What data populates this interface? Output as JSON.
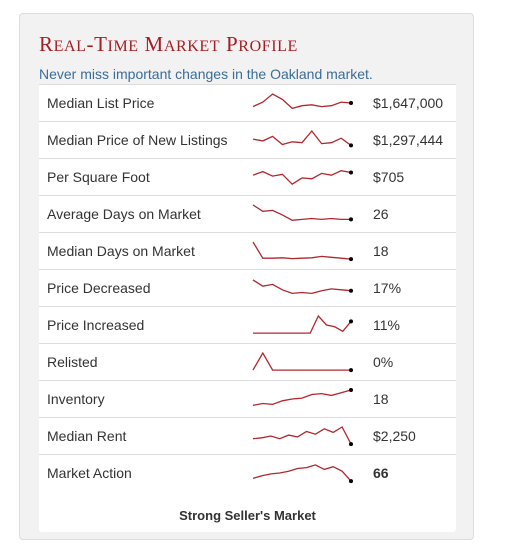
{
  "title": {
    "R": "R",
    "eal": "EAL",
    "dash": "-",
    "T": "T",
    "ime": "IME",
    "M1": "M",
    "arket": "ARKET",
    "P": "P",
    "rofile": "ROFILE"
  },
  "subtitle": "Never miss important changes in the Oakland market.",
  "colors": {
    "title": "#a61d23",
    "subtitle": "#3b6c9a",
    "sparkline": "#b0282e",
    "endpoint": "#000000"
  },
  "rows": [
    {
      "label": "Median List Price",
      "value": "$1,647,000",
      "trend": [
        0.3,
        0.55,
        1.0,
        0.7,
        0.2,
        0.35,
        0.4,
        0.3,
        0.35,
        0.55,
        0.5
      ]
    },
    {
      "label": "Median Price of New Listings",
      "value": "$1,297,444",
      "trend": [
        0.55,
        0.45,
        0.7,
        0.25,
        0.4,
        0.35,
        1.0,
        0.3,
        0.35,
        0.6,
        0.2
      ]
    },
    {
      "label": "Per Square Foot",
      "value": "$705",
      "trend": [
        0.6,
        0.8,
        0.55,
        0.65,
        0.1,
        0.45,
        0.4,
        0.7,
        0.6,
        0.85,
        0.75
      ]
    },
    {
      "label": "Average Days on Market",
      "value": "26",
      "trend": [
        1.0,
        0.65,
        0.7,
        0.45,
        0.15,
        0.2,
        0.25,
        0.2,
        0.25,
        0.2,
        0.2
      ]
    },
    {
      "label": "Median Days on Market",
      "value": "18",
      "trend": [
        1.0,
        0.1,
        0.1,
        0.12,
        0.08,
        0.1,
        0.12,
        0.2,
        0.15,
        0.1,
        0.05
      ]
    },
    {
      "label": "Price Decreased",
      "value": "17%",
      "trend": [
        0.95,
        0.6,
        0.7,
        0.4,
        0.2,
        0.25,
        0.2,
        0.35,
        0.45,
        0.4,
        0.35
      ]
    },
    {
      "label": "Price Increased",
      "value": "11%",
      "trend": [
        0.05,
        0.05,
        0.05,
        0.05,
        0.05,
        0.05,
        0.05,
        0.05,
        1.0,
        0.5,
        0.4,
        0.15,
        0.7
      ]
    },
    {
      "label": "Relisted",
      "value": "0%",
      "trend": [
        0.05,
        1.0,
        0.05,
        0.05,
        0.05,
        0.05,
        0.05,
        0.05,
        0.05,
        0.05,
        0.05
      ]
    },
    {
      "label": "Inventory",
      "value": "18",
      "trend": [
        0.15,
        0.25,
        0.2,
        0.4,
        0.5,
        0.55,
        0.75,
        0.8,
        0.7,
        0.85,
        1.0
      ]
    },
    {
      "label": "Median Rent",
      "value": "$2,250",
      "trend": [
        0.35,
        0.4,
        0.5,
        0.35,
        0.55,
        0.45,
        0.75,
        0.6,
        0.9,
        0.7,
        1.0,
        0.05
      ]
    },
    {
      "label": "Market Action",
      "value": "66",
      "trend": [
        0.2,
        0.35,
        0.45,
        0.5,
        0.6,
        0.75,
        0.8,
        0.95,
        0.7,
        0.85,
        0.6,
        0.05
      ]
    }
  ],
  "summary": "Strong Seller's Market"
}
